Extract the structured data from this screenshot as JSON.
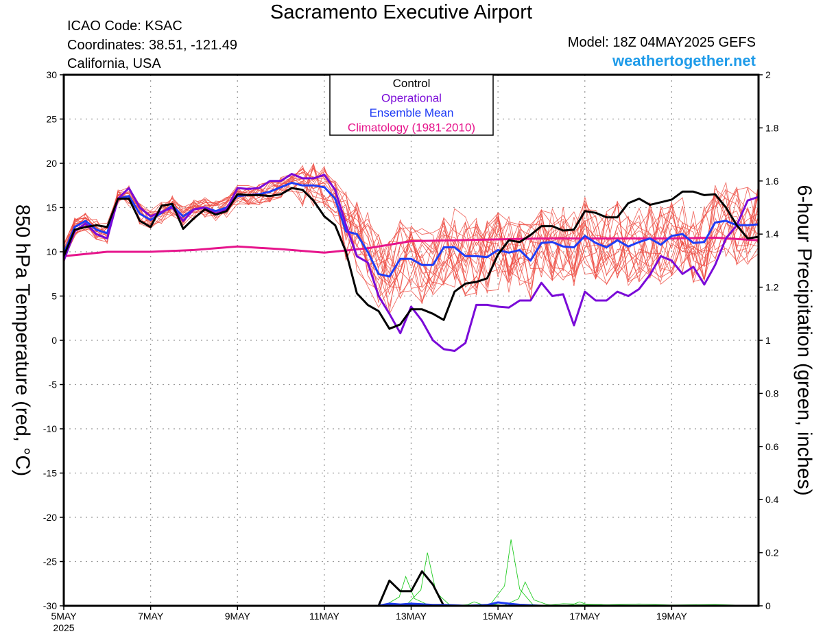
{
  "header": {
    "title": "Sacramento Executive Airport",
    "icao": "ICAO Code: KSAC",
    "coords": "Coordinates: 38.51, -121.49",
    "region": "California, USA",
    "model": "Model: 18Z 04MAY2025 GEFS",
    "site": "weathertogether.net"
  },
  "colors": {
    "control": "#000000",
    "operational": "#7a0ad8",
    "ensemble_mean": "#1f3cf5",
    "climatology": "#e6158c",
    "members": "#ee4a40",
    "precip": "#22cc22",
    "site": "#1e9be9"
  },
  "chart_data": {
    "type": "line",
    "ylabel": "850 hPa Temperature (red, °C)",
    "y2label": "6-hour Precipitation (green, inches)",
    "ylim": [
      -30,
      30
    ],
    "y2lim": [
      0,
      2
    ],
    "yticks": [
      30,
      25,
      20,
      15,
      10,
      5,
      0,
      -5,
      -10,
      -15,
      -20,
      -25,
      -30
    ],
    "y2ticks": [
      2,
      1.8,
      1.6,
      1.4,
      1.2,
      1,
      0.8,
      0.6,
      0.4,
      0.2,
      0
    ],
    "xlim": [
      0,
      64
    ],
    "xticks": [
      {
        "t": 0,
        "label": "5MAY",
        "sub": "2025"
      },
      {
        "t": 8,
        "label": "7MAY"
      },
      {
        "t": 16,
        "label": "9MAY"
      },
      {
        "t": 24,
        "label": "11MAY"
      },
      {
        "t": 32,
        "label": "13MAY"
      },
      {
        "t": 40,
        "label": "15MAY"
      },
      {
        "t": 48,
        "label": "17MAY"
      },
      {
        "t": 56,
        "label": "19MAY"
      }
    ],
    "grid": true,
    "legend": {
      "position": "top-center",
      "entries": [
        "Control",
        "Operational",
        "Ensemble Mean",
        "Climatology (1981-2010)"
      ]
    },
    "series": [
      {
        "name": "Control",
        "values": [
          [
            0,
            9.5
          ],
          [
            1,
            12.5
          ],
          [
            2,
            12.8
          ],
          [
            3,
            13
          ],
          [
            4,
            12.8
          ],
          [
            5,
            16
          ],
          [
            6,
            16
          ],
          [
            7,
            13.5
          ],
          [
            8,
            12.8
          ],
          [
            9,
            15.2
          ],
          [
            10,
            15.4
          ],
          [
            11,
            12.6
          ],
          [
            12,
            13.8
          ],
          [
            13,
            14.8
          ],
          [
            14,
            14.2
          ],
          [
            15,
            14.6
          ],
          [
            16,
            16.5
          ],
          [
            17,
            16.4
          ],
          [
            18,
            16.4
          ],
          [
            19,
            16.3
          ],
          [
            20,
            16.5
          ],
          [
            21,
            17.2
          ],
          [
            22,
            17
          ],
          [
            23,
            15.8
          ],
          [
            24,
            14
          ],
          [
            25,
            13
          ],
          [
            26,
            10
          ],
          [
            27,
            5.3
          ],
          [
            28,
            4
          ],
          [
            29,
            3.3
          ],
          [
            30,
            1.3
          ],
          [
            31,
            1.8
          ],
          [
            32,
            3.5
          ],
          [
            33,
            3.5
          ],
          [
            34,
            3
          ],
          [
            35,
            2.3
          ],
          [
            36,
            5.5
          ],
          [
            37,
            6.4
          ],
          [
            38,
            6.6
          ],
          [
            39,
            7
          ],
          [
            40,
            9.7
          ],
          [
            41,
            11.3
          ],
          [
            42,
            11.1
          ],
          [
            43,
            11.9
          ],
          [
            44,
            12.9
          ],
          [
            45,
            12.9
          ],
          [
            46,
            12.4
          ],
          [
            47,
            12.5
          ],
          [
            48,
            14.6
          ],
          [
            49,
            14.4
          ],
          [
            50,
            13.9
          ],
          [
            51,
            13.9
          ],
          [
            52,
            15.5
          ],
          [
            53,
            16
          ],
          [
            54,
            15.3
          ],
          [
            55,
            15.6
          ],
          [
            56,
            15.9
          ],
          [
            57,
            16.8
          ],
          [
            58,
            16.8
          ],
          [
            59,
            16.4
          ],
          [
            60,
            16.5
          ],
          [
            61,
            15
          ],
          [
            62,
            13
          ],
          [
            63,
            11.5
          ],
          [
            64,
            11.7
          ]
        ]
      },
      {
        "name": "Operational",
        "values": [
          [
            0,
            9
          ],
          [
            1,
            12.3
          ],
          [
            2,
            13.2
          ],
          [
            3,
            12
          ],
          [
            4,
            11.5
          ],
          [
            5,
            16
          ],
          [
            6,
            17.2
          ],
          [
            7,
            15
          ],
          [
            8,
            14
          ],
          [
            9,
            14.5
          ],
          [
            10,
            15
          ],
          [
            11,
            13.5
          ],
          [
            12,
            14.8
          ],
          [
            13,
            15
          ],
          [
            14,
            14.3
          ],
          [
            15,
            14.8
          ],
          [
            16,
            17.2
          ],
          [
            17,
            17.1
          ],
          [
            18,
            17.2
          ],
          [
            19,
            18
          ],
          [
            20,
            18
          ],
          [
            21,
            18.8
          ],
          [
            22,
            18.3
          ],
          [
            23,
            18.3
          ],
          [
            24,
            18.7
          ],
          [
            25,
            17
          ],
          [
            26,
            13
          ],
          [
            27,
            9.5
          ],
          [
            28,
            8.8
          ],
          [
            29,
            5
          ],
          [
            30,
            3
          ],
          [
            31,
            0.8
          ],
          [
            32,
            3.8
          ],
          [
            33,
            2.2
          ],
          [
            34,
            0
          ],
          [
            35,
            -1
          ],
          [
            36,
            -1.2
          ],
          [
            37,
            -0.3
          ],
          [
            38,
            4
          ],
          [
            39,
            4
          ],
          [
            40,
            3.8
          ],
          [
            41,
            3.7
          ],
          [
            42,
            4.5
          ],
          [
            43,
            4.5
          ],
          [
            44,
            6.5
          ],
          [
            45,
            5
          ],
          [
            46,
            5.2
          ],
          [
            47,
            1.7
          ],
          [
            48,
            5.5
          ],
          [
            49,
            4.5
          ],
          [
            50,
            4.5
          ],
          [
            51,
            5.5
          ],
          [
            52,
            5
          ],
          [
            53,
            5.8
          ],
          [
            54,
            7.4
          ],
          [
            55,
            9.5
          ],
          [
            56,
            9
          ],
          [
            57,
            7.5
          ],
          [
            58,
            8.3
          ],
          [
            59,
            6.3
          ],
          [
            60,
            8.5
          ],
          [
            61,
            11.5
          ],
          [
            62,
            13
          ],
          [
            63,
            15.8
          ],
          [
            64,
            16.2
          ]
        ]
      },
      {
        "name": "Ensemble Mean",
        "values": [
          [
            0,
            9.8
          ],
          [
            1,
            12.8
          ],
          [
            2,
            13.5
          ],
          [
            3,
            12.5
          ],
          [
            4,
            12.1
          ],
          [
            5,
            16
          ],
          [
            6,
            16.3
          ],
          [
            7,
            14.3
          ],
          [
            8,
            13.6
          ],
          [
            9,
            14.4
          ],
          [
            10,
            15.2
          ],
          [
            11,
            14
          ],
          [
            12,
            14.8
          ],
          [
            13,
            15
          ],
          [
            14,
            14.6
          ],
          [
            15,
            15
          ],
          [
            16,
            16.3
          ],
          [
            17,
            16.4
          ],
          [
            18,
            16.5
          ],
          [
            19,
            16.8
          ],
          [
            20,
            17.3
          ],
          [
            21,
            17.8
          ],
          [
            22,
            17.5
          ],
          [
            23,
            17.5
          ],
          [
            24,
            17.3
          ],
          [
            25,
            16
          ],
          [
            26,
            12.3
          ],
          [
            27,
            12
          ],
          [
            28,
            10
          ],
          [
            29,
            7.5
          ],
          [
            30,
            7.2
          ],
          [
            31,
            9.2
          ],
          [
            32,
            9.2
          ],
          [
            33,
            8.5
          ],
          [
            34,
            8.5
          ],
          [
            35,
            10.5
          ],
          [
            36,
            10.5
          ],
          [
            37,
            9.5
          ],
          [
            38,
            9.5
          ],
          [
            39,
            9.4
          ],
          [
            40,
            10.2
          ],
          [
            41,
            9.9
          ],
          [
            42,
            10.2
          ],
          [
            43,
            9
          ],
          [
            44,
            11
          ],
          [
            45,
            11.1
          ],
          [
            46,
            10.6
          ],
          [
            47,
            10.5
          ],
          [
            48,
            11.8
          ],
          [
            49,
            11
          ],
          [
            50,
            10.5
          ],
          [
            51,
            11.3
          ],
          [
            52,
            10.6
          ],
          [
            53,
            11.1
          ],
          [
            54,
            11.5
          ],
          [
            55,
            10.8
          ],
          [
            56,
            11.8
          ],
          [
            57,
            12
          ],
          [
            58,
            11
          ],
          [
            59,
            11.1
          ],
          [
            60,
            13.3
          ],
          [
            61,
            13.5
          ],
          [
            62,
            13
          ],
          [
            63,
            13
          ],
          [
            64,
            13.1
          ]
        ]
      },
      {
        "name": "Climatology (1981-2010)",
        "values": [
          [
            0,
            9.5
          ],
          [
            4,
            10
          ],
          [
            8,
            10
          ],
          [
            12,
            10.2
          ],
          [
            16,
            10.6
          ],
          [
            20,
            10.3
          ],
          [
            24,
            9.9
          ],
          [
            28,
            10.4
          ],
          [
            32,
            11.2
          ],
          [
            36,
            11.3
          ],
          [
            40,
            11.4
          ],
          [
            44,
            11.5
          ],
          [
            48,
            11.5
          ],
          [
            52,
            11.5
          ],
          [
            56,
            11.5
          ],
          [
            60,
            11.6
          ],
          [
            64,
            11.3
          ]
        ]
      }
    ],
    "precip_series": [
      {
        "name": "Control",
        "values": [
          [
            0,
            0
          ],
          [
            29,
            0
          ],
          [
            30,
            0.095
          ],
          [
            31,
            0.055
          ],
          [
            32,
            0.055
          ],
          [
            33,
            0.13
          ],
          [
            34,
            0.08
          ],
          [
            35,
            0
          ],
          [
            64,
            0
          ]
        ]
      },
      {
        "name": "Ensemble Mean",
        "values": [
          [
            0,
            0
          ],
          [
            29,
            0
          ],
          [
            30,
            0.008
          ],
          [
            31,
            0.005
          ],
          [
            32,
            0.008
          ],
          [
            33,
            0.006
          ],
          [
            34,
            0.003
          ],
          [
            35,
            0.003
          ],
          [
            36,
            0.002
          ],
          [
            37,
            0
          ],
          [
            39,
            0.003
          ],
          [
            40,
            0.013
          ],
          [
            41,
            0.008
          ],
          [
            42,
            0.004
          ],
          [
            43,
            0.002
          ],
          [
            44,
            0
          ],
          [
            64,
            0
          ]
        ]
      }
    ]
  }
}
